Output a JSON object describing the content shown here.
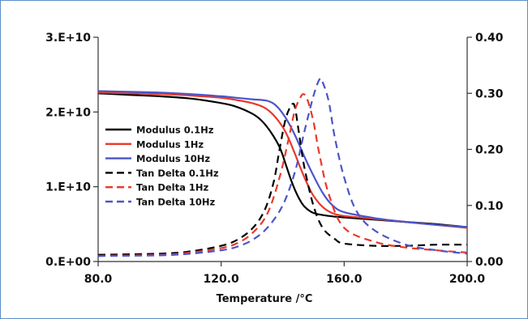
{
  "chart_data": {
    "type": "line",
    "title": "",
    "xlabel": "Temperature /°C",
    "ylabel_left": "",
    "ylabel_right": "",
    "xlim": [
      80,
      200
    ],
    "ylim_left": [
      0,
      30000000000
    ],
    "ylim_right": [
      0,
      0.4
    ],
    "x_ticks": [
      "80.0",
      "120.0",
      "160.0",
      "200.0"
    ],
    "x_tick_values": [
      80,
      120,
      160,
      200
    ],
    "y_left_ticks": [
      "0.E+00",
      "1.E+10",
      "2.E+10",
      "3.E+10"
    ],
    "y_left_tick_values": [
      0,
      10000000000,
      20000000000,
      30000000000
    ],
    "y_right_ticks": [
      "0.00",
      "0.10",
      "0.20",
      "0.30",
      "0.40"
    ],
    "y_right_tick_values": [
      0,
      0.1,
      0.2,
      0.3,
      0.4
    ],
    "grid": false,
    "legend_position": "left-middle",
    "series": [
      {
        "name": "Modulus 0.1Hz",
        "axis": "left",
        "color": "#000000",
        "dash": "solid",
        "x": [
          80,
          90,
          100,
          110,
          120,
          125,
          130,
          133,
          136,
          139,
          141,
          143,
          145,
          147,
          150,
          155,
          160,
          170,
          180,
          190,
          200
        ],
        "y": [
          22500000000,
          22300000000,
          22100000000,
          21800000000,
          21200000000,
          20700000000,
          19800000000,
          18900000000,
          17400000000,
          15300000000,
          13000000000,
          10600000000,
          8700000000,
          7400000000,
          6500000000,
          6100000000,
          5900000000,
          5600000000,
          5300000000,
          5000000000,
          4600000000
        ]
      },
      {
        "name": "Modulus 1Hz",
        "axis": "left",
        "color": "#e8392a",
        "dash": "solid",
        "x": [
          80,
          90,
          100,
          110,
          120,
          125,
          130,
          134,
          137,
          140,
          142,
          144,
          146,
          148,
          150,
          153,
          156,
          160,
          170,
          180,
          190,
          200
        ],
        "y": [
          22600000000,
          22500000000,
          22400000000,
          22200000000,
          21900000000,
          21600000000,
          21200000000,
          20600000000,
          19600000000,
          18000000000,
          16400000000,
          14400000000,
          12300000000,
          10400000000,
          8800000000,
          7300000000,
          6500000000,
          6100000000,
          5700000000,
          5300000000,
          4900000000,
          4500000000
        ]
      },
      {
        "name": "Modulus 10Hz",
        "axis": "left",
        "color": "#4a55c9",
        "dash": "solid",
        "x": [
          80,
          90,
          100,
          110,
          120,
          125,
          130,
          135,
          138,
          141,
          144,
          147,
          150,
          153,
          156,
          160,
          170,
          180,
          190,
          200
        ],
        "y": [
          22800000000,
          22700000000,
          22600000000,
          22400000000,
          22100000000,
          21900000000,
          21700000000,
          21500000000,
          20800000000,
          19200000000,
          16900000000,
          14100000000,
          11500000000,
          9200000000,
          7600000000,
          6600000000,
          5800000000,
          5300000000,
          4900000000,
          4600000000
        ]
      },
      {
        "name": "Tan Delta 0.1Hz",
        "axis": "right",
        "color": "#000000",
        "dash": "dashed",
        "x": [
          80,
          100,
          110,
          120,
          125,
          130,
          134,
          137,
          139,
          141,
          143,
          144,
          145,
          147,
          150,
          153,
          157,
          160,
          170,
          180,
          190,
          200
        ],
        "y": [
          0.012,
          0.014,
          0.018,
          0.028,
          0.038,
          0.058,
          0.09,
          0.14,
          0.2,
          0.255,
          0.28,
          0.275,
          0.24,
          0.17,
          0.1,
          0.06,
          0.04,
          0.032,
          0.028,
          0.028,
          0.03,
          0.03
        ],
        "draw_until": 200
      },
      {
        "name": "Tan Delta 1Hz",
        "axis": "right",
        "color": "#e8392a",
        "dash": "dashed",
        "x": [
          80,
          100,
          110,
          120,
          125,
          130,
          135,
          139,
          142,
          144,
          146,
          147,
          148,
          150,
          152,
          155,
          160,
          170,
          180,
          190,
          200
        ],
        "y": [
          0.01,
          0.012,
          0.016,
          0.024,
          0.032,
          0.05,
          0.085,
          0.15,
          0.22,
          0.27,
          0.295,
          0.298,
          0.29,
          0.25,
          0.19,
          0.12,
          0.06,
          0.035,
          0.025,
          0.02,
          0.016
        ]
      },
      {
        "name": "Tan Delta 10Hz",
        "axis": "right",
        "color": "#4a55c9",
        "dash": "dashed",
        "x": [
          80,
          100,
          110,
          120,
          125,
          130,
          135,
          140,
          144,
          147,
          150,
          152,
          153,
          155,
          157,
          160,
          164,
          170,
          180,
          190,
          200
        ],
        "y": [
          0.01,
          0.011,
          0.014,
          0.02,
          0.026,
          0.038,
          0.06,
          0.1,
          0.16,
          0.23,
          0.295,
          0.325,
          0.32,
          0.285,
          0.22,
          0.15,
          0.09,
          0.055,
          0.03,
          0.02,
          0.014
        ]
      }
    ]
  }
}
